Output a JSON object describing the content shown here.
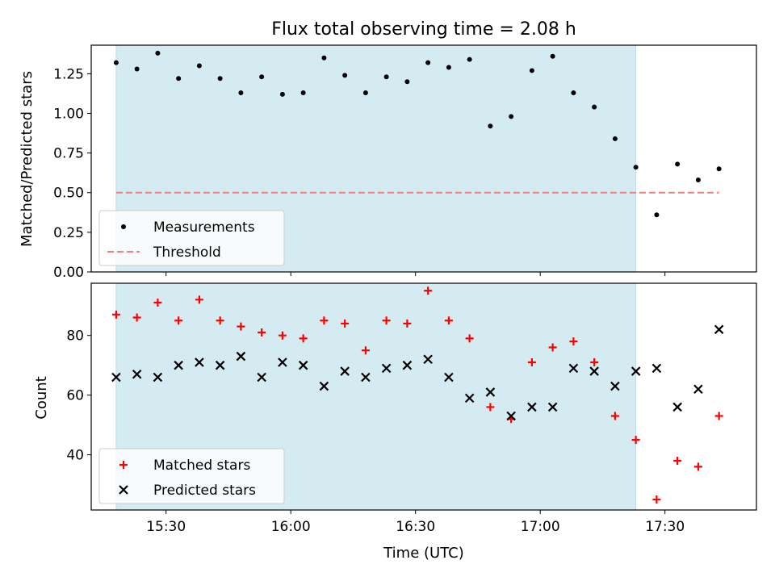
{
  "chart_data": [
    {
      "type": "scatter",
      "title": "Flux total observing time = 2.08 h",
      "xlabel": "",
      "ylabel": "Matched/Predicted stars",
      "ylim": [
        0,
        1.43
      ],
      "yticks": [
        0.0,
        0.25,
        0.5,
        0.75,
        1.0,
        1.25
      ],
      "ytick_labels": [
        "0.00",
        "0.25",
        "0.50",
        "0.75",
        "1.00",
        "1.25"
      ],
      "xlim": [
        "15:12",
        "17:52"
      ],
      "xticks": [
        "15:30",
        "16:00",
        "16:30",
        "17:00",
        "17:30"
      ],
      "shaded_span": [
        "15:18",
        "17:23"
      ],
      "shade_color": "#d4ebf1",
      "legend_position": "lower-left",
      "series": [
        {
          "name": "Measurements",
          "marker": "dot",
          "color": "#000000",
          "x": [
            "15:18",
            "15:23",
            "15:28",
            "15:33",
            "15:38",
            "15:43",
            "15:48",
            "15:53",
            "15:58",
            "16:03",
            "16:08",
            "16:13",
            "16:18",
            "16:23",
            "16:28",
            "16:33",
            "16:38",
            "16:43",
            "16:48",
            "16:53",
            "16:58",
            "17:03",
            "17:08",
            "17:13",
            "17:18",
            "17:23",
            "17:28",
            "17:33",
            "17:38",
            "17:43"
          ],
          "y": [
            1.32,
            1.28,
            1.38,
            1.22,
            1.3,
            1.22,
            1.13,
            1.23,
            1.12,
            1.13,
            1.35,
            1.24,
            1.13,
            1.23,
            1.2,
            1.32,
            1.29,
            1.34,
            0.92,
            0.98,
            1.27,
            1.36,
            1.13,
            1.04,
            0.84,
            0.66,
            0.36,
            0.68,
            0.58,
            0.65
          ]
        },
        {
          "name": "Threshold",
          "marker": "dashed-line",
          "color": "#f08080",
          "x": [
            "15:18",
            "17:43"
          ],
          "y": [
            0.5,
            0.5
          ]
        }
      ]
    },
    {
      "type": "scatter",
      "title": "",
      "xlabel": "Time (UTC)",
      "ylabel": "Count",
      "ylim": [
        21.5,
        97.5
      ],
      "yticks": [
        40,
        60,
        80
      ],
      "ytick_labels": [
        "40",
        "60",
        "80"
      ],
      "xlim": [
        "15:12",
        "17:52"
      ],
      "xticks": [
        "15:30",
        "16:00",
        "16:30",
        "17:00",
        "17:30"
      ],
      "xtick_labels": [
        "15:30",
        "16:00",
        "16:30",
        "17:00",
        "17:30"
      ],
      "shaded_span": [
        "15:18",
        "17:23"
      ],
      "shade_color": "#d4ebf1",
      "legend_position": "lower-left",
      "series": [
        {
          "name": "Matched stars",
          "marker": "plus",
          "color": "#ff0000",
          "x": [
            "15:18",
            "15:23",
            "15:28",
            "15:33",
            "15:38",
            "15:43",
            "15:48",
            "15:53",
            "15:58",
            "16:03",
            "16:08",
            "16:13",
            "16:18",
            "16:23",
            "16:28",
            "16:33",
            "16:38",
            "16:43",
            "16:48",
            "16:53",
            "16:58",
            "17:03",
            "17:08",
            "17:13",
            "17:18",
            "17:23",
            "17:28",
            "17:33",
            "17:38",
            "17:43"
          ],
          "y": [
            87,
            86,
            91,
            85,
            92,
            85,
            83,
            81,
            80,
            79,
            85,
            84,
            75,
            85,
            84,
            95,
            85,
            79,
            56,
            52,
            71,
            76,
            78,
            71,
            53,
            45,
            25,
            38,
            36,
            53
          ]
        },
        {
          "name": "Predicted stars",
          "marker": "x",
          "color": "#000000",
          "x": [
            "15:18",
            "15:23",
            "15:28",
            "15:33",
            "15:38",
            "15:43",
            "15:48",
            "15:53",
            "15:58",
            "16:03",
            "16:08",
            "16:13",
            "16:18",
            "16:23",
            "16:28",
            "16:33",
            "16:38",
            "16:43",
            "16:48",
            "16:53",
            "16:58",
            "17:03",
            "17:08",
            "17:13",
            "17:18",
            "17:23",
            "17:28",
            "17:33",
            "17:38",
            "17:43"
          ],
          "y": [
            66,
            67,
            66,
            70,
            71,
            70,
            73,
            66,
            71,
            70,
            63,
            68,
            66,
            69,
            70,
            72,
            66,
            59,
            61,
            53,
            56,
            56,
            69,
            68,
            63,
            68,
            69,
            56,
            62,
            82
          ]
        }
      ]
    }
  ]
}
